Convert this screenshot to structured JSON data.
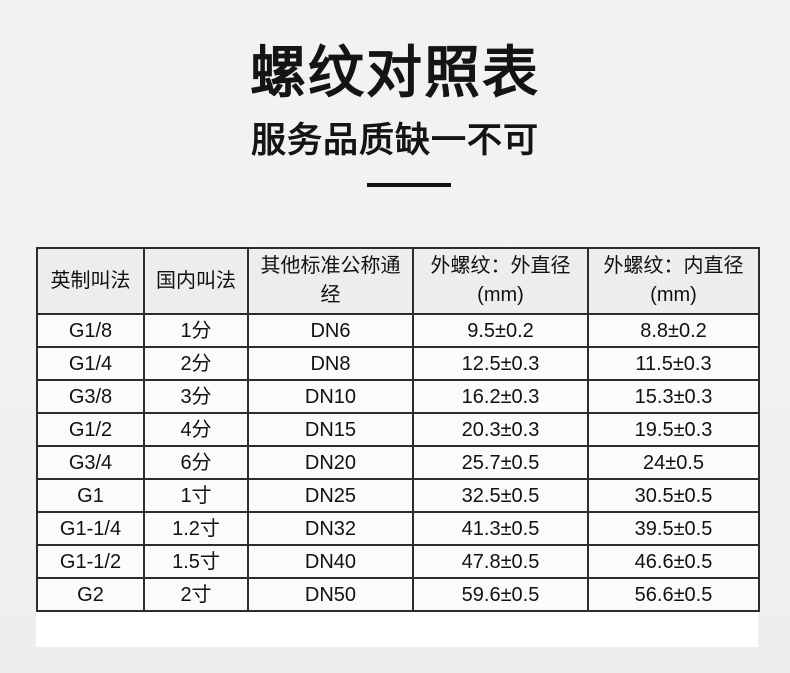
{
  "page": {
    "title": "螺纹对照表",
    "subtitle": "服务品质缺一不可"
  },
  "table": {
    "headers": [
      "英制叫法",
      "国内叫法",
      "其他标准公称通\n经",
      "外螺纹：外直径\n(mm)",
      "外螺纹：内直径\n(mm)"
    ],
    "rows": [
      [
        "G1/8",
        "1分",
        "DN6",
        "9.5±0.2",
        "8.8±0.2"
      ],
      [
        "G1/4",
        "2分",
        "DN8",
        "12.5±0.3",
        "11.5±0.3"
      ],
      [
        "G3/8",
        "3分",
        "DN10",
        "16.2±0.3",
        "15.3±0.3"
      ],
      [
        "G1/2",
        "4分",
        "DN15",
        "20.3±0.3",
        "19.5±0.3"
      ],
      [
        "G3/4",
        "6分",
        "DN20",
        "25.7±0.5",
        "24±0.5"
      ],
      [
        "G1",
        "1寸",
        "DN25",
        "32.5±0.5",
        "30.5±0.5"
      ],
      [
        "G1-1/4",
        "1.2寸",
        "DN32",
        "41.3±0.5",
        "39.5±0.5"
      ],
      [
        "G1-1/2",
        "1.5寸",
        "DN40",
        "47.8±0.5",
        "46.6±0.5"
      ],
      [
        "G2",
        "2寸",
        "DN50",
        "59.6±0.5",
        "56.6±0.5"
      ]
    ]
  },
  "colors": {
    "background": "#f1f1f1",
    "text": "#141414",
    "table_border": "#2d2d2d",
    "header_bg": "#ededed",
    "cell_bg": "#fbfbfb",
    "underline": "#111111"
  }
}
